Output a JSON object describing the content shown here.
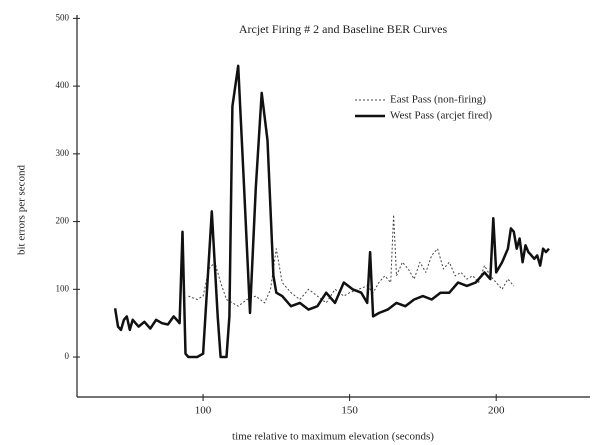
{
  "chart_data": {
    "type": "line",
    "title": "Arcjet Firing # 2 and Baseline BER Curves",
    "xlabel": "time relative to maximum elevation (seconds)",
    "ylabel": "bit errors per second",
    "xlim": [
      57,
      232
    ],
    "ylim": [
      -59,
      505
    ],
    "xticks": [
      100,
      150,
      200
    ],
    "yticks": [
      0,
      100,
      200,
      300,
      400,
      500
    ],
    "legend": "upper right",
    "series": [
      {
        "name": "East Pass (non-firing)",
        "color": "#444444",
        "linestyle": "dotted",
        "linewidth": 1,
        "x": [
          95,
          98,
          100,
          102,
          104,
          106,
          108,
          110,
          112,
          115,
          118,
          121,
          123,
          125,
          127,
          130,
          133,
          136,
          139,
          142,
          145,
          148,
          150,
          153,
          156,
          158,
          160,
          162,
          164,
          165,
          166,
          168,
          170,
          172,
          174,
          176,
          178,
          180,
          182,
          184,
          186,
          188,
          190,
          192,
          194,
          196,
          198,
          200,
          202,
          204,
          206
        ],
        "values": [
          90,
          85,
          90,
          130,
          140,
          110,
          85,
          80,
          75,
          85,
          90,
          80,
          100,
          160,
          110,
          95,
          85,
          100,
          90,
          80,
          100,
          90,
          95,
          100,
          105,
          95,
          110,
          120,
          110,
          210,
          120,
          140,
          130,
          115,
          140,
          125,
          150,
          160,
          130,
          140,
          120,
          125,
          115,
          120,
          110,
          135,
          120,
          110,
          100,
          115,
          105
        ]
      },
      {
        "name": "West Pass (arcjet fired)",
        "color": "#111111",
        "linestyle": "solid",
        "linewidth": 2.5,
        "x": [
          70,
          71,
          72,
          73,
          74,
          75,
          76,
          77,
          78,
          80,
          82,
          84,
          86,
          88,
          90,
          91,
          92,
          93,
          94,
          95,
          98,
          100,
          103,
          105,
          106,
          108,
          109,
          110,
          112,
          114,
          116,
          118,
          120,
          122,
          124,
          125,
          127,
          130,
          133,
          136,
          139,
          142,
          145,
          148,
          151,
          154,
          156,
          157,
          158,
          160,
          163,
          166,
          169,
          172,
          175,
          178,
          181,
          184,
          187,
          190,
          193,
          196,
          198,
          199,
          200,
          202,
          204,
          205,
          206,
          207,
          208,
          209,
          210,
          211,
          212,
          213,
          214,
          215,
          216,
          217,
          218
        ],
        "values": [
          72,
          45,
          40,
          55,
          60,
          40,
          55,
          50,
          45,
          52,
          42,
          55,
          50,
          48,
          60,
          55,
          50,
          185,
          5,
          0,
          0,
          5,
          215,
          60,
          0,
          0,
          60,
          370,
          430,
          250,
          65,
          250,
          390,
          320,
          120,
          95,
          90,
          75,
          80,
          70,
          75,
          95,
          80,
          110,
          100,
          95,
          80,
          155,
          60,
          65,
          70,
          80,
          75,
          85,
          90,
          85,
          95,
          95,
          110,
          105,
          110,
          125,
          115,
          205,
          125,
          140,
          160,
          190,
          185,
          160,
          175,
          140,
          165,
          155,
          150,
          145,
          150,
          135,
          160,
          155,
          160
        ]
      }
    ]
  }
}
